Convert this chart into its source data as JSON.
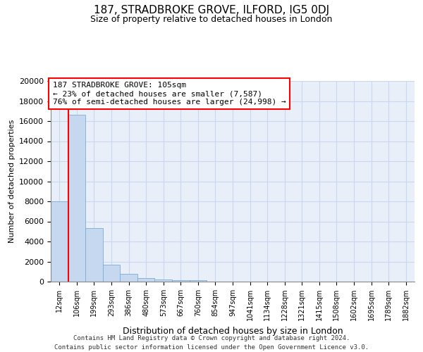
{
  "title": "187, STRADBROKE GROVE, ILFORD, IG5 0DJ",
  "subtitle": "Size of property relative to detached houses in London",
  "xlabel": "Distribution of detached houses by size in London",
  "ylabel": "Number of detached properties",
  "bar_labels": [
    "12sqm",
    "106sqm",
    "199sqm",
    "293sqm",
    "386sqm",
    "480sqm",
    "573sqm",
    "667sqm",
    "760sqm",
    "854sqm",
    "947sqm",
    "1041sqm",
    "1134sqm",
    "1228sqm",
    "1321sqm",
    "1415sqm",
    "1508sqm",
    "1602sqm",
    "1695sqm",
    "1789sqm",
    "1882sqm"
  ],
  "bar_values": [
    8000,
    16600,
    5300,
    1700,
    800,
    350,
    230,
    170,
    130,
    0,
    0,
    0,
    0,
    0,
    0,
    0,
    0,
    0,
    0,
    0,
    0
  ],
  "bar_color": "#c5d8f0",
  "bar_edge_color": "#7aadd4",
  "property_line_x": 1,
  "property_label": "187 STRADBROKE GROVE: 105sqm",
  "annotation_line1": "← 23% of detached houses are smaller (7,587)",
  "annotation_line2": "76% of semi-detached houses are larger (24,998) →",
  "annotation_box_color": "#ffffff",
  "annotation_box_edge": "#ff0000",
  "vline_color": "#ff0000",
  "ylim": [
    0,
    20000
  ],
  "yticks": [
    0,
    2000,
    4000,
    6000,
    8000,
    10000,
    12000,
    14000,
    16000,
    18000,
    20000
  ],
  "grid_color": "#c8d8ee",
  "bg_color": "#e8eff9",
  "footer_line1": "Contains HM Land Registry data © Crown copyright and database right 2024.",
  "footer_line2": "Contains public sector information licensed under the Open Government Licence v3.0."
}
